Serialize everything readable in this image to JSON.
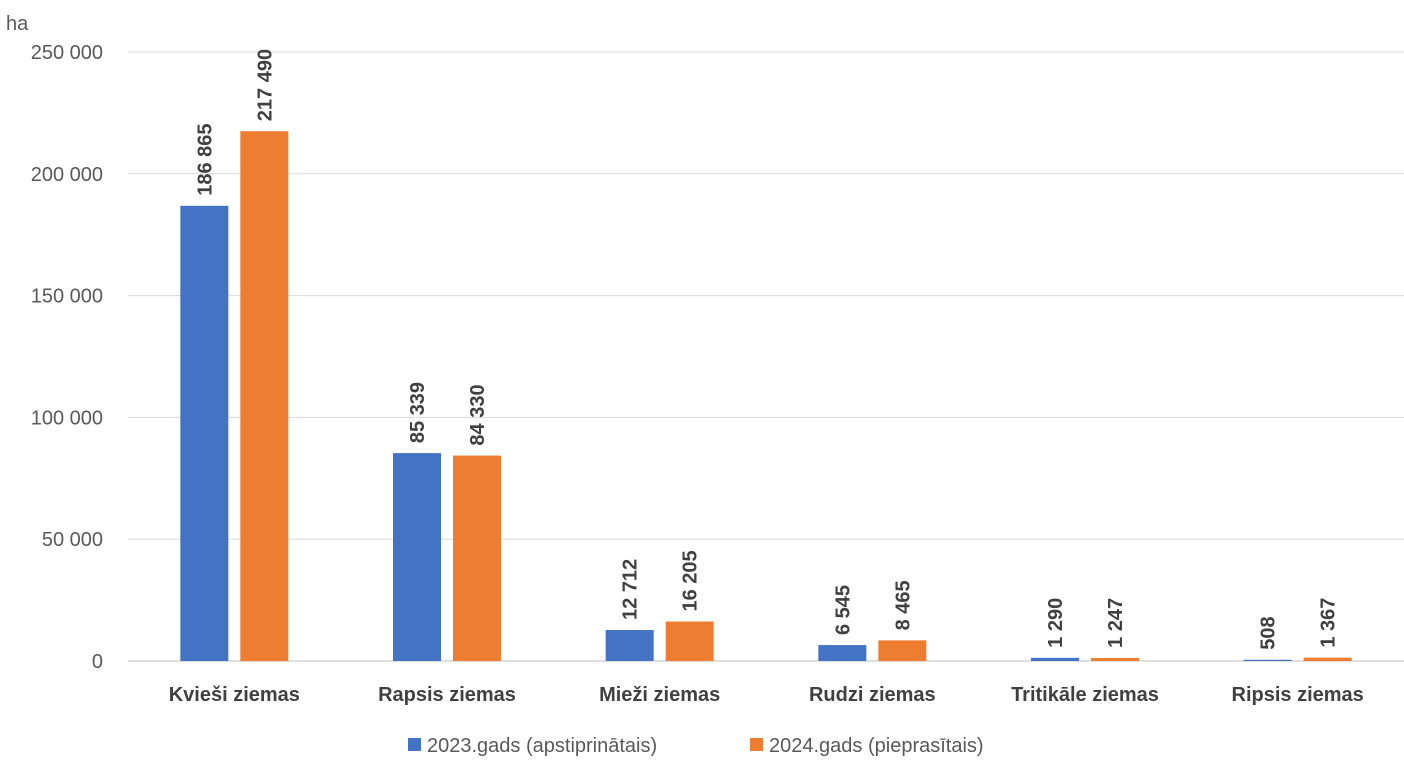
{
  "chart_data": {
    "type": "bar",
    "unit_label": "ha",
    "categories": [
      "Kvieši ziemas",
      "Rapsis ziemas",
      "Mieži ziemas",
      "Rudzi ziemas",
      "Tritikāle ziemas",
      "Ripsis ziemas"
    ],
    "series": [
      {
        "name": "2023.gads (apstiprinātais)",
        "color": "#4472C4",
        "values": [
          186865,
          85339,
          12712,
          6545,
          1290,
          508
        ],
        "labels": [
          "186 865",
          "85 339",
          "12 712",
          "6 545",
          "1 290",
          "508"
        ]
      },
      {
        "name": "2024.gads (pieprasītais)",
        "color": "#ED7D31",
        "values": [
          217490,
          84330,
          16205,
          8465,
          1247,
          1367
        ],
        "labels": [
          "217 490",
          "84 330",
          "16 205",
          "8 465",
          "1 247",
          "1 367"
        ]
      }
    ],
    "ylim": [
      0,
      250000
    ],
    "yticks": [
      0,
      50000,
      100000,
      150000,
      200000,
      250000
    ],
    "ytick_labels": [
      "0",
      "50 000",
      "100 000",
      "150 000",
      "200 000",
      "250 000"
    ],
    "grid": true,
    "legend_position": "bottom"
  }
}
